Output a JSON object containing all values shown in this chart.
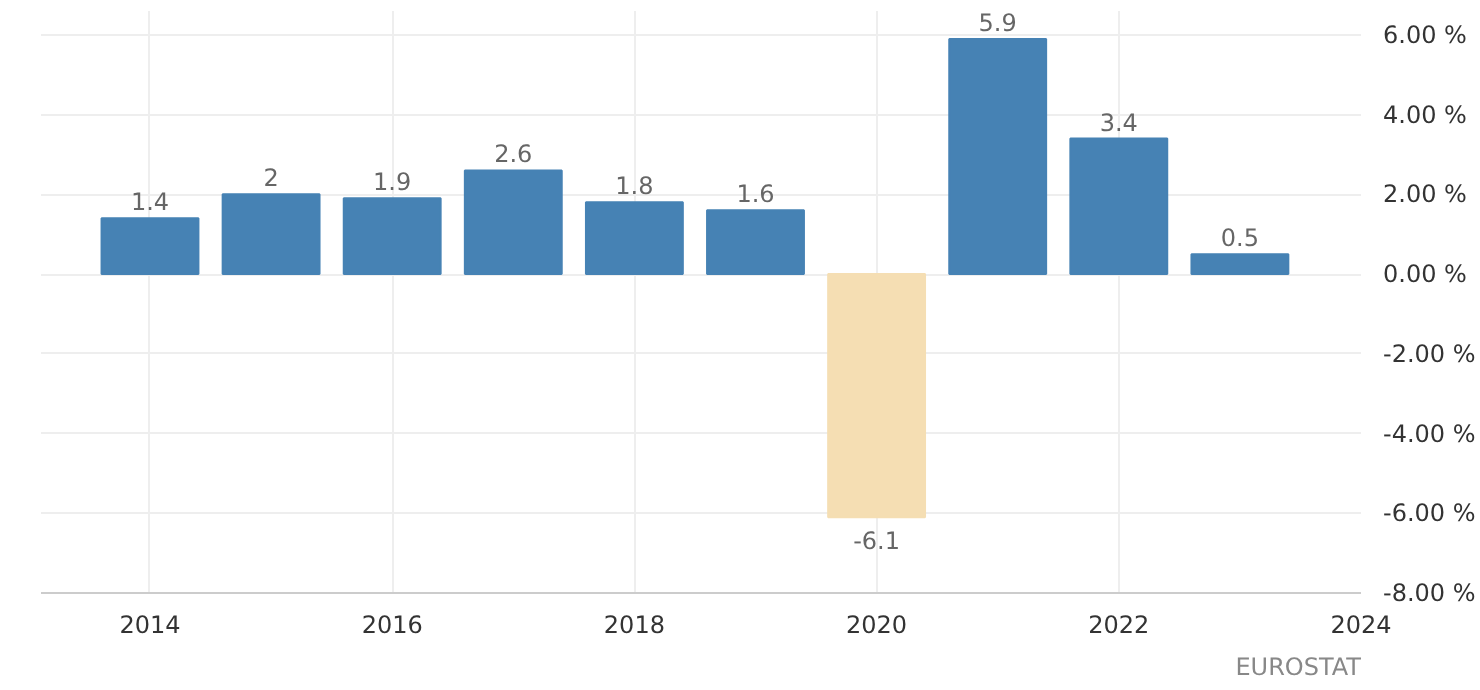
{
  "chart_data": {
    "type": "bar",
    "x": [
      2014,
      2015,
      2016,
      2017,
      2018,
      2019,
      2020,
      2021,
      2022,
      2023
    ],
    "values": [
      1.4,
      2,
      1.9,
      2.6,
      1.8,
      1.6,
      -6.1,
      5.9,
      3.4,
      0.5
    ],
    "colors": [
      "#4682b4",
      "#4682b4",
      "#4682b4",
      "#4682b4",
      "#4682b4",
      "#4682b4",
      "#f5deb3",
      "#4682b4",
      "#4682b4",
      "#4682b4"
    ],
    "data_labels": true,
    "grid": true,
    "xlim": [
      2013.1,
      2024
    ],
    "xticks": [
      2014,
      2016,
      2018,
      2020,
      2022,
      2024
    ],
    "ylim": [
      -8,
      6.6
    ],
    "yticks": [
      {
        "value": 6,
        "label": "6.00 %"
      },
      {
        "value": 4,
        "label": "4.00 %"
      },
      {
        "value": 2,
        "label": "2.00 %"
      },
      {
        "value": 0,
        "label": "0.00 %"
      },
      {
        "value": -2,
        "label": "-2.00 %"
      },
      {
        "value": -4,
        "label": "-4.00 %"
      },
      {
        "value": -6,
        "label": "-6.00 %"
      },
      {
        "value": -8,
        "label": "-8.00 %"
      }
    ],
    "annotations": [
      "EUROSTAT"
    ]
  }
}
